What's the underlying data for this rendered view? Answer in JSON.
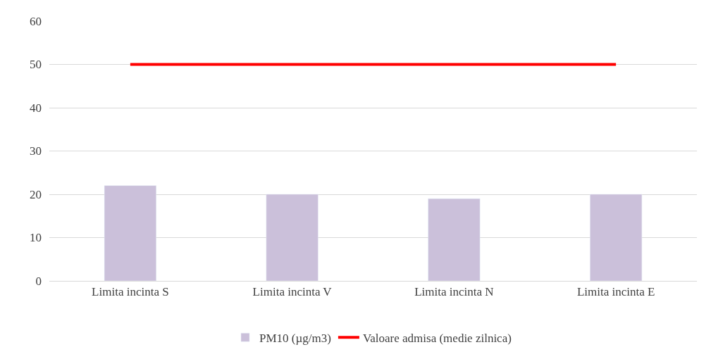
{
  "chart_data": {
    "type": "bar",
    "categories": [
      "Limita incinta S",
      "Limita incinta V",
      "Limita incinta N",
      "Limita incinta E"
    ],
    "series": [
      {
        "name": "PM10 (µg/m3)",
        "color": "#cbc0da",
        "values": [
          22,
          20,
          19,
          20
        ]
      },
      {
        "name": "Valoare admisa (medie zilnica)",
        "type": "line",
        "color": "#ff0000",
        "values": [
          50,
          50,
          50,
          50
        ]
      }
    ],
    "ylim": [
      0,
      60
    ],
    "yticks": [
      0,
      10,
      20,
      30,
      40,
      50,
      60
    ],
    "grid": "y",
    "legend": "bottom",
    "marker": "none"
  }
}
